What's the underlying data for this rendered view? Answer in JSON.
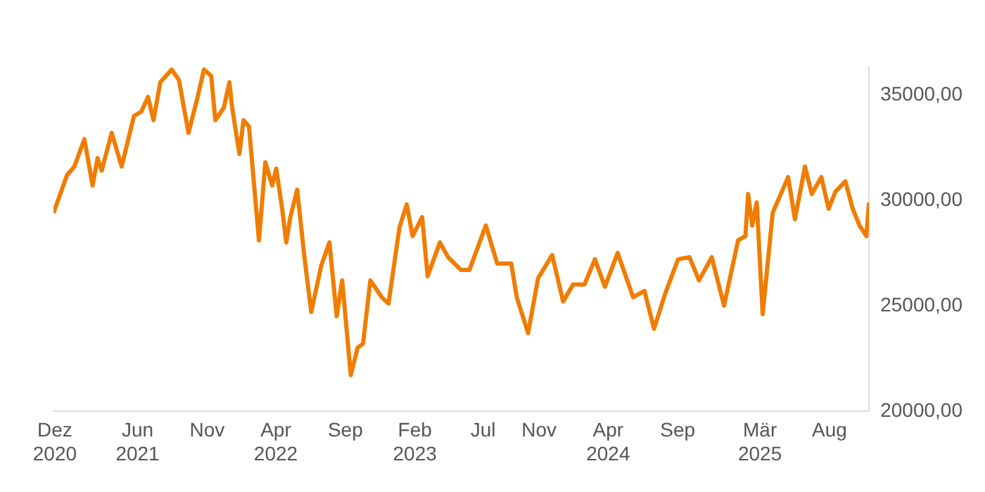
{
  "chart_data": {
    "type": "line",
    "x": [
      "2020-11-28",
      "2020-12-13",
      "2020-12-28",
      "2021-01-13",
      "2021-02-04",
      "2021-02-22",
      "2021-03-05",
      "2021-03-14",
      "2021-04-05",
      "2021-04-27",
      "2021-05-24",
      "2021-06-09",
      "2021-06-24",
      "2021-07-06",
      "2021-07-21",
      "2021-08-15",
      "2021-08-31",
      "2021-09-21",
      "2021-10-10",
      "2021-10-25",
      "2021-11-10",
      "2021-11-19",
      "2021-12-08",
      "2021-12-20",
      "2021-12-26",
      "2022-01-11",
      "2022-01-20",
      "2022-02-01",
      "2022-02-23",
      "2022-03-09",
      "2022-03-24",
      "2022-04-02",
      "2022-04-15",
      "2022-04-24",
      "2022-05-03",
      "2022-05-18",
      "2022-06-03",
      "2022-06-18",
      "2022-07-10",
      "2022-07-28",
      "2022-08-13",
      "2022-08-25",
      "2022-09-13",
      "2022-09-28",
      "2022-10-10",
      "2022-10-26",
      "2022-11-20",
      "2022-12-05",
      "2022-12-29",
      "2023-01-14",
      "2023-01-27",
      "2023-02-17",
      "2023-03-01",
      "2023-03-28",
      "2023-04-15",
      "2023-05-13",
      "2023-06-01",
      "2023-07-07",
      "2023-08-01",
      "2023-09-01",
      "2023-09-13",
      "2023-10-08",
      "2023-10-30",
      "2023-11-30",
      "2023-12-24",
      "2024-01-15",
      "2024-02-09",
      "2024-03-03",
      "2024-03-25",
      "2024-04-22",
      "2024-05-26",
      "2024-06-20",
      "2024-07-11",
      "2024-08-05",
      "2024-09-02",
      "2024-09-27",
      "2024-10-18",
      "2024-11-15",
      "2024-12-12",
      "2025-01-12",
      "2025-01-28",
      "2025-02-03",
      "2025-02-12",
      "2025-02-22",
      "2025-03-07",
      "2025-03-29",
      "2025-04-20",
      "2025-05-02",
      "2025-05-17",
      "2025-06-08",
      "2025-06-23",
      "2025-07-14",
      "2025-07-30",
      "2025-08-14",
      "2025-09-05",
      "2025-09-21",
      "2025-10-06",
      "2025-10-21",
      "2025-10-27"
    ],
    "series": [
      {
        "color": "#f07d00",
        "values": [
          29400,
          30300,
          31200,
          31600,
          32900,
          30700,
          32000,
          31400,
          33200,
          31600,
          34000,
          34200,
          34900,
          33800,
          35600,
          36200,
          35700,
          33200,
          34800,
          36200,
          35900,
          33800,
          34400,
          35600,
          34400,
          32200,
          33800,
          33500,
          28100,
          31800,
          30700,
          31500,
          29600,
          28000,
          29200,
          30500,
          27300,
          24700,
          26900,
          28000,
          24500,
          26200,
          21700,
          23000,
          23200,
          26200,
          25400,
          25100,
          28700,
          29800,
          28300,
          29200,
          26400,
          28000,
          27300,
          26700,
          26700,
          28800,
          27000,
          27000,
          25400,
          23700,
          26300,
          27400,
          25200,
          26000,
          26000,
          27200,
          25900,
          27500,
          25400,
          25700,
          23900,
          25600,
          27200,
          27300,
          26200,
          27300,
          25000,
          28100,
          28300,
          30300,
          28800,
          29900,
          24600,
          29400,
          30500,
          31100,
          29100,
          31600,
          30300,
          31100,
          29600,
          30400,
          30900,
          29600,
          28800,
          28300,
          29900
        ]
      }
    ],
    "xlim": [
      "2020-11-28",
      "2025-10-27"
    ],
    "xticks": [
      {
        "value": "2020-12-01",
        "label": "Dez\n2020"
      },
      {
        "value": "2021-06-01",
        "label": "Jun\n2021"
      },
      {
        "value": "2021-11-01",
        "label": "Nov"
      },
      {
        "value": "2022-04-01",
        "label": "Apr\n2022"
      },
      {
        "value": "2022-09-01",
        "label": "Sep"
      },
      {
        "value": "2023-02-01",
        "label": "Feb\n2023"
      },
      {
        "value": "2023-07-01",
        "label": "Jul"
      },
      {
        "value": "2023-11-01",
        "label": "Nov"
      },
      {
        "value": "2024-04-01",
        "label": "Apr\n2024"
      },
      {
        "value": "2024-09-01",
        "label": "Sep"
      },
      {
        "value": "2025-03-01",
        "label": "Mär\n2025"
      },
      {
        "value": "2025-08-01",
        "label": "Aug"
      }
    ],
    "ylim": [
      20000,
      36300
    ],
    "yticks": [
      {
        "value": 20000,
        "label": "20000,00"
      },
      {
        "value": 25000,
        "label": "25000,00"
      },
      {
        "value": 30000,
        "label": "30000,00"
      },
      {
        "value": 35000,
        "label": "35000,00"
      }
    ],
    "grid": false
  }
}
